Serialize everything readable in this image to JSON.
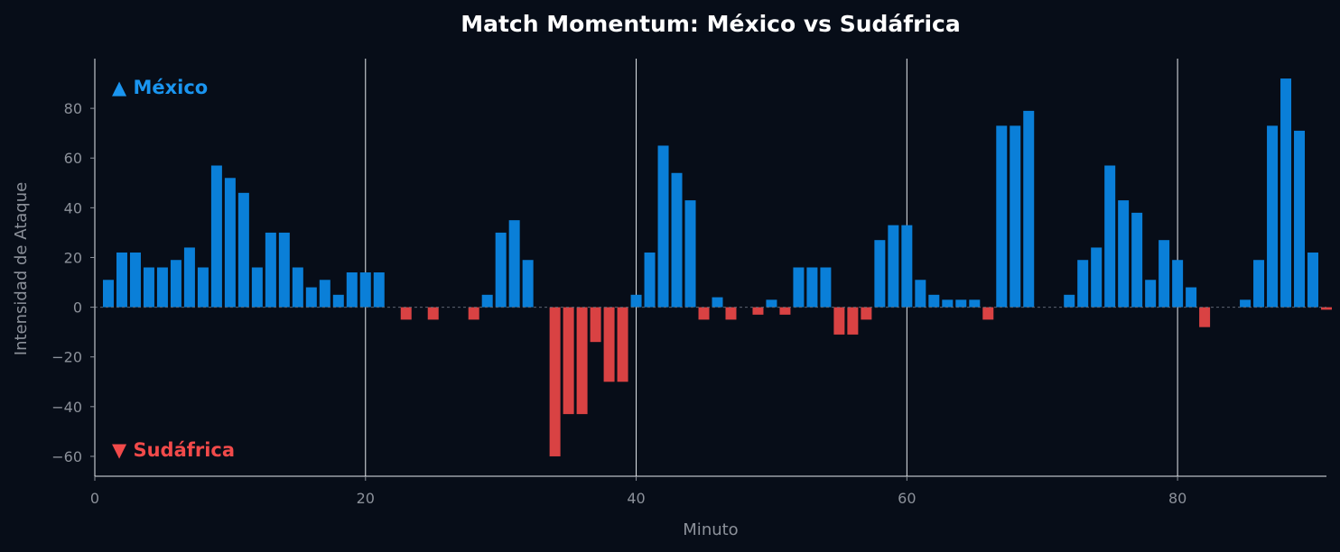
{
  "chart_data": {
    "type": "bar",
    "title": "Match Momentum: México vs Sudáfrica",
    "xlabel": "Minuto",
    "ylabel": "Intensidad de Ataque",
    "xlim": [
      0,
      91
    ],
    "ylim": [
      -68,
      100
    ],
    "x_ticks": [
      0,
      20,
      40,
      60,
      80
    ],
    "y_ticks": [
      -60,
      -40,
      -20,
      0,
      20,
      40,
      60,
      80
    ],
    "tick_labels_x": [
      "0",
      "20",
      "40",
      "60",
      "80"
    ],
    "tick_labels_y": [
      "−60",
      "−40",
      "−20",
      "0",
      "20",
      "40",
      "60",
      "80"
    ],
    "grid": "vertical lines at x ticks",
    "annotations": [
      {
        "text": "▲ México",
        "team": "mexico",
        "placement": "top-left"
      },
      {
        "text": "▼ Sudáfrica",
        "team": "sudafrica",
        "placement": "bottom-left"
      }
    ],
    "colors": {
      "mexico": "#0a7fd8",
      "sudafrica": "#d94243",
      "background": "#070d18"
    },
    "minutes": [
      1,
      2,
      3,
      4,
      5,
      6,
      7,
      8,
      9,
      10,
      11,
      12,
      13,
      14,
      15,
      16,
      17,
      18,
      19,
      20,
      21,
      22,
      23,
      24,
      25,
      26,
      27,
      28,
      29,
      30,
      31,
      32,
      33,
      34,
      35,
      36,
      37,
      38,
      39,
      40,
      41,
      42,
      43,
      44,
      45,
      46,
      47,
      48,
      49,
      50,
      51,
      52,
      53,
      54,
      55,
      56,
      57,
      58,
      59,
      60,
      61,
      62,
      63,
      64,
      65,
      66,
      67,
      68,
      69,
      70,
      71,
      72,
      73,
      74,
      75,
      76,
      77,
      78,
      79,
      80,
      81,
      82,
      83,
      84,
      85,
      86,
      87,
      88,
      89,
      90,
      91
    ],
    "values": [
      11,
      22,
      22,
      16,
      16,
      19,
      24,
      16,
      57,
      52,
      46,
      16,
      30,
      30,
      16,
      8,
      11,
      5,
      14,
      14,
      14,
      0,
      -5,
      0,
      -5,
      0,
      0,
      -5,
      5,
      30,
      35,
      19,
      0,
      -60,
      -43,
      -43,
      -14,
      -30,
      -30,
      5,
      22,
      65,
      54,
      43,
      -5,
      4,
      -5,
      0,
      -3,
      3,
      -3,
      16,
      16,
      16,
      -11,
      -11,
      -5,
      27,
      33,
      33,
      11,
      5,
      3,
      3,
      3,
      -5,
      73,
      73,
      79,
      0,
      0,
      5,
      19,
      24,
      57,
      43,
      38,
      11,
      27,
      19,
      8,
      -8,
      0,
      0,
      3,
      19,
      73,
      92,
      71,
      22,
      -1
    ]
  }
}
